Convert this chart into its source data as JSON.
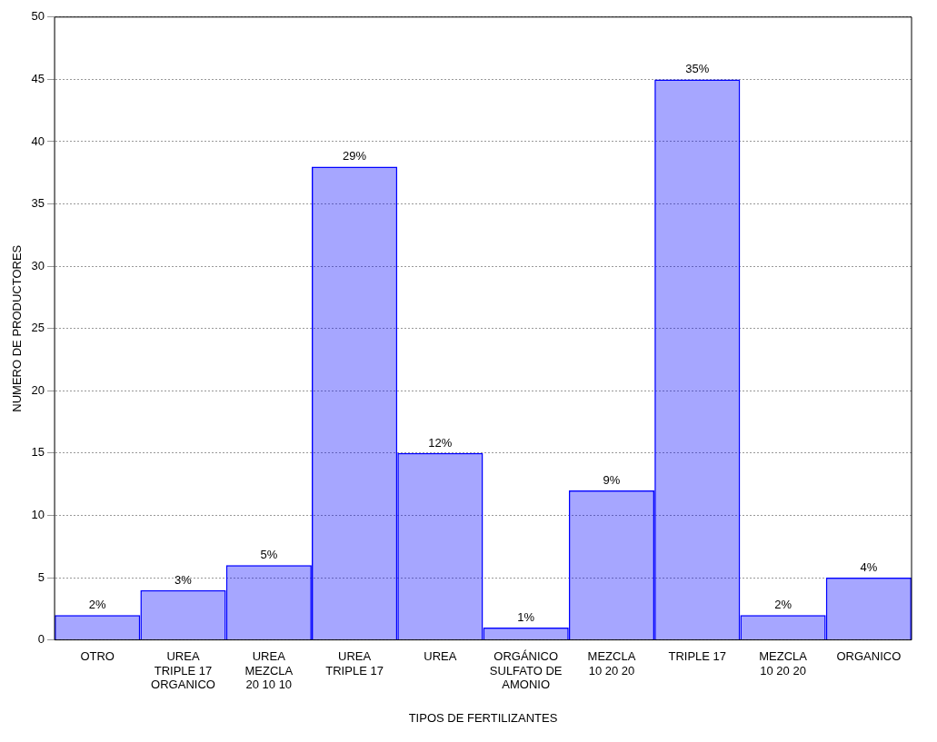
{
  "chart_data": {
    "type": "bar",
    "xlabel": "TIPOS DE FERTILIZANTES",
    "ylabel": "NUMERO DE PRODUCTORES",
    "categories": [
      "OTRO",
      "UREA\nTRIPLE 17\nORGANICO",
      "UREA\nMEZCLA\n20 10 10",
      "UREA\nTRIPLE 17",
      "UREA",
      "ORGÁNICO\nSULFATO DE AMONIO",
      "MEZCLA\n10 20 20",
      "TRIPLE 17",
      "MEZCLA\n10 20 20",
      "ORGANICO"
    ],
    "values": [
      2,
      4,
      6,
      38,
      15,
      1,
      12,
      45,
      2,
      5
    ],
    "annotations": [
      {
        "text": "2%",
        "x": "OTRO",
        "y": 2
      },
      {
        "text": "3%",
        "x": "UREA\nTRIPLE 17\nORGANICO",
        "y": 4
      },
      {
        "text": "5%",
        "x": "UREA\nMEZCLA\n20 10 10",
        "y": 6
      },
      {
        "text": "29%",
        "x": "UREA\nTRIPLE 17",
        "y": 38
      },
      {
        "text": "12%",
        "x": "UREA",
        "y": 15
      },
      {
        "text": "1%",
        "x": "ORGÁNICO\nSULFATO DE AMONIO",
        "y": 1
      },
      {
        "text": "9%",
        "x": "MEZCLA\n10 20 20",
        "y": 12
      },
      {
        "text": "35%",
        "x": "TRIPLE 17",
        "y": 45
      },
      "2%",
      {
        "text": "4%",
        "x": "ORGANICO",
        "y": 5
      }
    ],
    "color": "#0000ff",
    "ylim": [
      0,
      50
    ],
    "yticks": [
      0,
      5,
      10,
      15,
      20,
      25,
      30,
      35,
      40,
      45,
      50
    ],
    "grid": "y",
    "legend": false
  }
}
